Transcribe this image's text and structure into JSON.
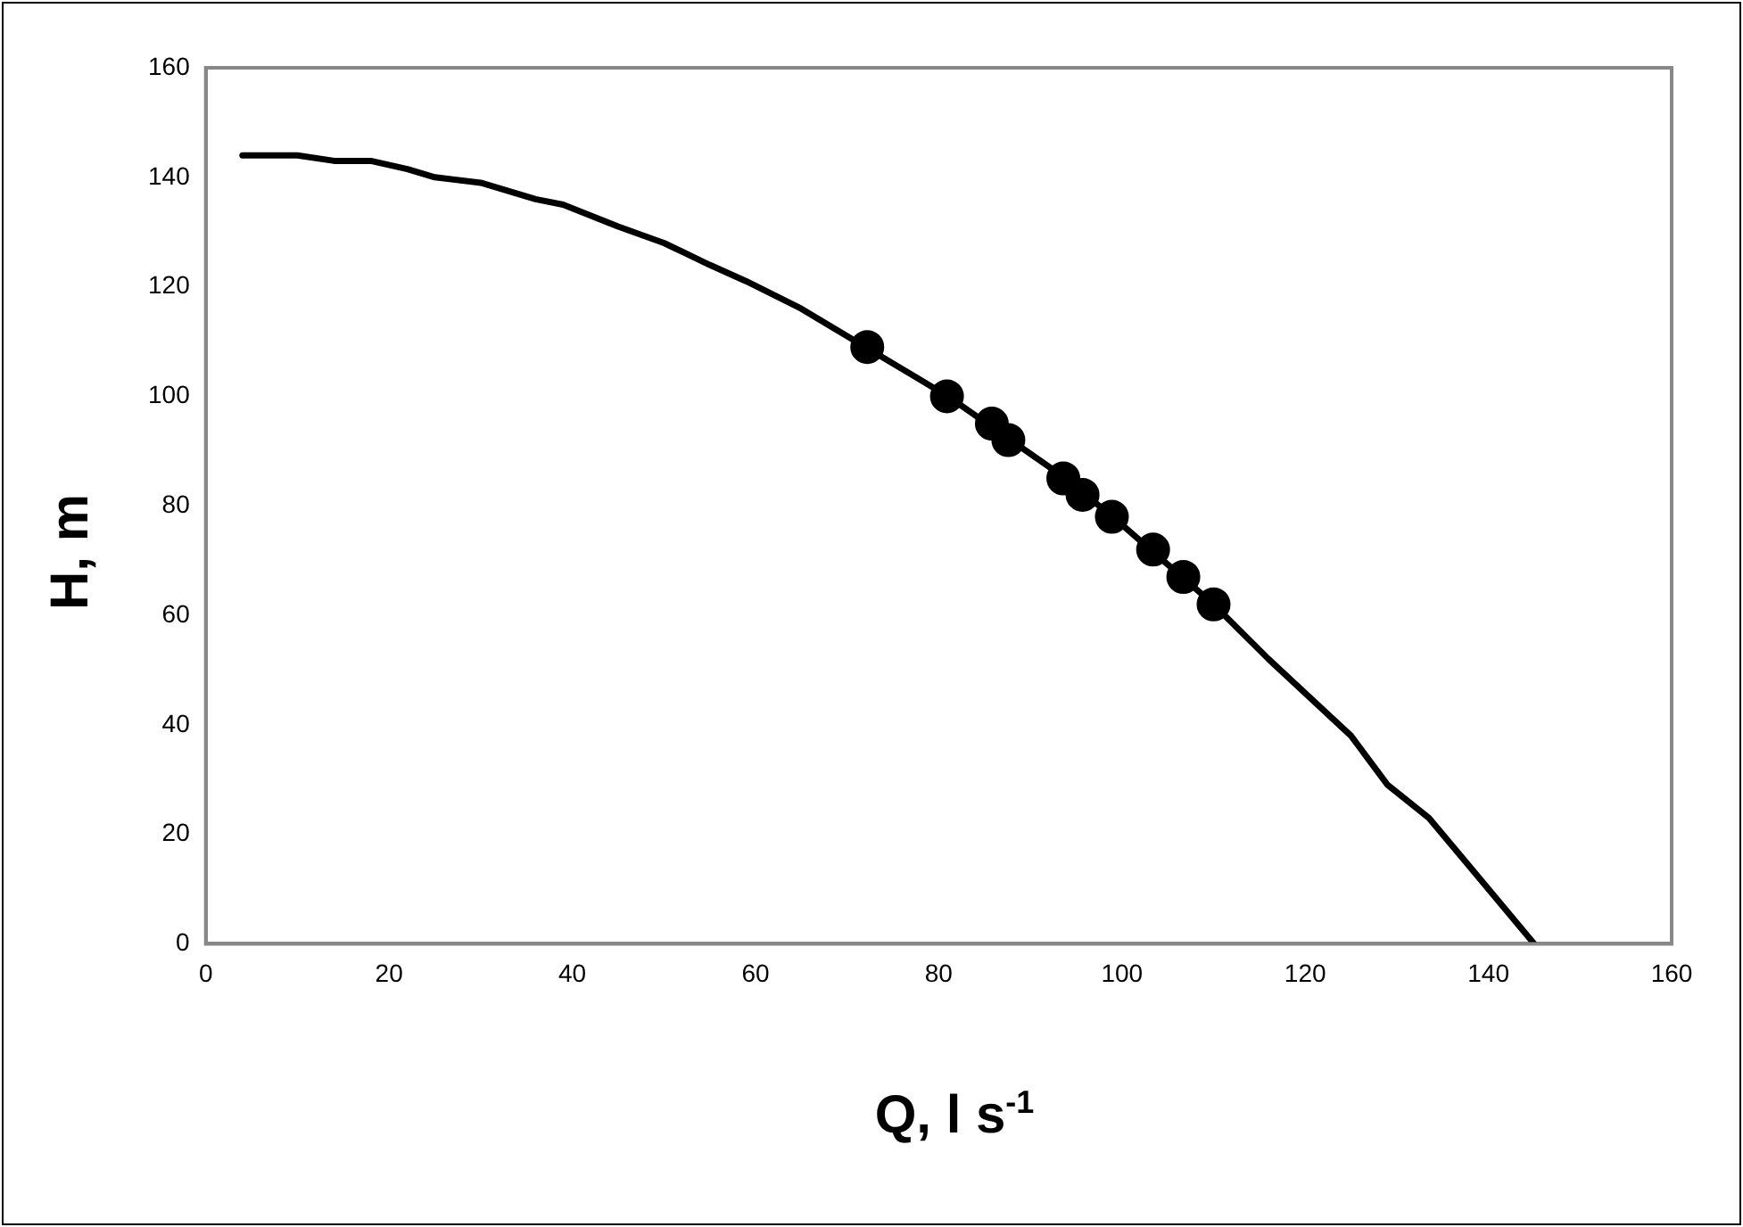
{
  "chart_data": {
    "type": "line",
    "xlabel": "Q, l s$^{-1}$",
    "ylabel": "H, m",
    "xlim": [
      0,
      160
    ],
    "xticks": [
      0,
      20,
      40,
      60,
      80,
      100,
      120,
      140,
      160
    ],
    "ylim": [
      0,
      160
    ],
    "yticks": [
      0,
      20,
      40,
      60,
      80,
      100,
      120,
      140,
      160
    ],
    "grid": false,
    "legend": false,
    "series": [
      {
        "type": "line",
        "color": "#000000",
        "marker": "none",
        "line_style": "solid",
        "x": [
          4,
          10,
          14,
          18,
          22,
          25,
          30,
          36,
          39,
          42,
          45,
          50,
          55,
          59,
          65,
          72,
          81,
          93,
          99,
          110,
          116,
          125,
          129,
          133.5,
          137.5,
          145
        ],
        "values": [
          144,
          144,
          143,
          143,
          141.5,
          140,
          139,
          136,
          135,
          133,
          131,
          128,
          124,
          121,
          116,
          109,
          100,
          86,
          78,
          62,
          52,
          38,
          29,
          23,
          15,
          0
        ]
      },
      {
        "type": "scatter",
        "color": "#000000",
        "marker": "circle",
        "x": [
          72.2,
          80.9,
          85.8,
          87.6,
          93.6,
          95.7,
          98.9,
          103.4,
          106.7,
          110
        ],
        "values": [
          109,
          100,
          95,
          92,
          85,
          82,
          78,
          72,
          67,
          62
        ]
      }
    ]
  }
}
